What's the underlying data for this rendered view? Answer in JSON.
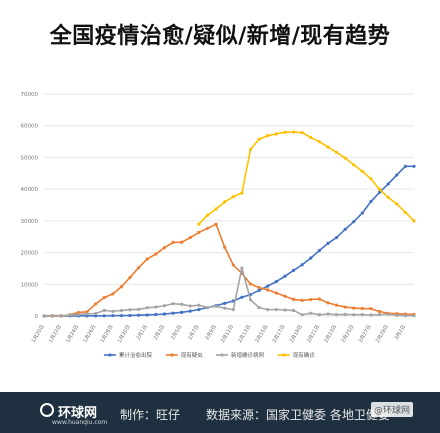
{
  "page": {
    "title": "全国疫情治愈/疑似/新增/现有趋势",
    "footer_logo": "环球网",
    "footer_url": "www.huanqiu.com",
    "footer_maker": "制作：旺仔",
    "footer_source": "数据来源：国家卫健委 各地卫健委",
    "watermark": "@环球网"
  },
  "chart_data": {
    "type": "line",
    "title": "全国疫情治愈/疑似/新增/现有趋势",
    "xlabel": "",
    "ylabel": "",
    "ylim": [
      0,
      70000
    ],
    "yticks": [
      0,
      10000,
      20000,
      30000,
      40000,
      50000,
      60000,
      70000
    ],
    "grid": true,
    "legend": "bottom",
    "categories": [
      "1月20日",
      "1月21日",
      "1月22日",
      "1月23日",
      "1月24日",
      "1月25日",
      "1月26日",
      "1月27日",
      "1月28日",
      "1月29日",
      "1月30日",
      "1月31日",
      "2月1日",
      "2月2日",
      "2月3日",
      "2月4日",
      "2月5日",
      "2月6日",
      "2月7日",
      "2月8日",
      "2月9日",
      "2月10日",
      "2月11日",
      "2月12日",
      "2月13日",
      "2月14日",
      "2月15日",
      "2月16日",
      "2月17日",
      "2月18日",
      "2月19日",
      "2月20日",
      "2月21日",
      "2月22日",
      "2月23日",
      "2月24日",
      "2月25日",
      "2月26日",
      "2月27日",
      "2月28日",
      "2月29日",
      "3月1日",
      "3月2日",
      "3月3日"
    ],
    "xtick_labels": [
      "1月20日",
      "",
      "1月22日",
      "",
      "1月24日",
      "",
      "1月26日",
      "",
      "1月28日",
      "",
      "1月30日",
      "",
      "2月1日",
      "",
      "2月3日",
      "",
      "2月5日",
      "",
      "2月7日",
      "",
      "2月9日",
      "",
      "2月11日",
      "",
      "2月13日",
      "",
      "2月15日",
      "",
      "2月17日",
      "",
      "2月19日",
      "",
      "2月21日",
      "",
      "2月23日",
      "",
      "2月25日",
      "",
      "2月27日",
      "",
      "2月29日",
      "",
      "3月2日",
      ""
    ],
    "series": [
      {
        "name": "累计治愈出院",
        "color": "#4472c4",
        "values": [
          0,
          25,
          28,
          34,
          38,
          49,
          51,
          60,
          103,
          124,
          171,
          243,
          328,
          475,
          632,
          892,
          1153,
          1540,
          2050,
          2649,
          3281,
          3996,
          4740,
          5911,
          6723,
          8096,
          9419,
          10844,
          12552,
          14376,
          16155,
          18264,
          20659,
          22888,
          24734,
          27323,
          29745,
          32495,
          36117,
          39002,
          41625,
          44462,
          47204,
          47204
        ]
      },
      {
        "name": "现有疑似",
        "color": "#ed7d31",
        "values": [
          0,
          0,
          0,
          393,
          1118,
          1309,
          3806,
          5794,
          6973,
          9239,
          12167,
          15238,
          17988,
          19544,
          21558,
          23214,
          23260,
          24702,
          26359,
          27657,
          28942,
          21675,
          16067,
          13435,
          10109,
          8969,
          8228,
          7264,
          6242,
          5248,
          4922,
          5206,
          5365,
          4148,
          3434,
          2824,
          2491,
          2358,
          2308,
          1418,
          851,
          715,
          587,
          520
        ]
      },
      {
        "name": "新增确诊病例",
        "color": "#a5a5a5",
        "values": [
          77,
          149,
          131,
          259,
          444,
          688,
          769,
          1771,
          1459,
          1737,
          1982,
          2102,
          2590,
          2829,
          3235,
          3887,
          3694,
          3143,
          3399,
          2656,
          3062,
          2478,
          2015,
          15152,
          5090,
          2641,
          2009,
          2048,
          1886,
          1749,
          394,
          889,
          397,
          648,
          409,
          508,
          406,
          433,
          327,
          427,
          573,
          202,
          125,
          119
        ]
      },
      {
        "name": "现有确诊",
        "color": "#ffc000",
        "values": [
          null,
          null,
          null,
          null,
          null,
          null,
          null,
          null,
          null,
          null,
          null,
          null,
          null,
          null,
          null,
          null,
          null,
          null,
          28985,
          31774,
          33738,
          35982,
          37626,
          38800,
          52526,
          55748,
          56873,
          57416,
          57934,
          58016,
          57805,
          56303,
          54965,
          53284,
          51606,
          49824,
          47672,
          45604,
          43258,
          39919,
          37414,
          35329,
          32652,
          30004
        ]
      }
    ]
  }
}
